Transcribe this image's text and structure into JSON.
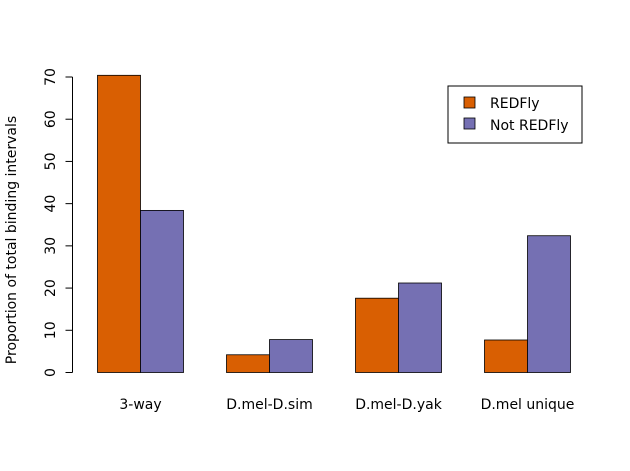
{
  "chart_data": {
    "type": "bar",
    "title": "",
    "xlabel": "",
    "ylabel": "Proportion of total binding intervals",
    "categories": [
      "3-way",
      "D.mel-D.sim",
      "D.mel-D.yak",
      "D.mel unique"
    ],
    "series": [
      {
        "name": "REDFly",
        "color": "#d95f02",
        "values": [
          70.4,
          4.2,
          17.6,
          7.7
        ]
      },
      {
        "name": "Not REDFly",
        "color": "#7570b3",
        "values": [
          38.4,
          7.8,
          21.2,
          32.4
        ]
      }
    ],
    "yticks": [
      0,
      10,
      20,
      30,
      40,
      50,
      60,
      70
    ],
    "ylim": [
      0,
      70
    ],
    "grid": false,
    "legend_position": "top-right"
  }
}
